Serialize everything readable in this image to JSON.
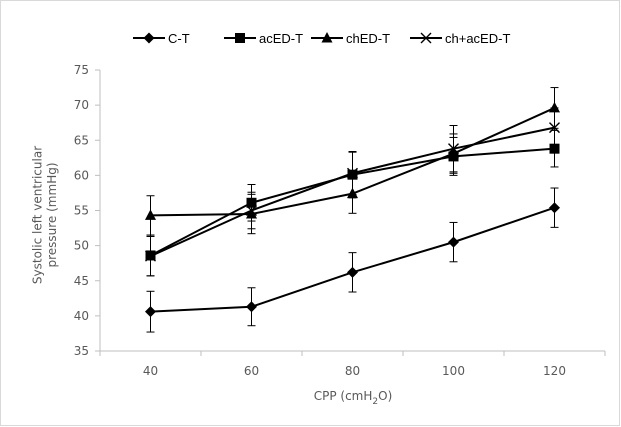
{
  "chart_data": {
    "type": "line",
    "title": "",
    "xlabel": "CPP (cmH2O)",
    "ylabel_lines": [
      "Systolic left ventricular",
      "pressure (mmHg)"
    ],
    "x": [
      40,
      60,
      80,
      100,
      120
    ],
    "x_ticks": [
      "40",
      "60",
      "80",
      "100",
      "120"
    ],
    "ylim": [
      35,
      75
    ],
    "y_ticks": [
      "35",
      "40",
      "45",
      "50",
      "55",
      "60",
      "65",
      "70",
      "75"
    ],
    "grid": false,
    "legend_position": "top",
    "line_color": "#000000",
    "series": [
      {
        "name": "C-T",
        "marker": "diamond",
        "values": [
          40.6,
          41.3,
          46.2,
          50.5,
          55.4
        ],
        "errors": [
          2.9,
          2.7,
          2.8,
          2.8,
          2.8
        ]
      },
      {
        "name": "acED-T",
        "marker": "square",
        "values": [
          48.6,
          56.1,
          60.1,
          62.7,
          63.8
        ],
        "errors": [
          2.9,
          2.6,
          3.3,
          2.7,
          2.6
        ]
      },
      {
        "name": "chED-T",
        "marker": "triangle",
        "values": [
          54.3,
          54.5,
          57.4,
          63.1,
          69.6
        ],
        "errors": [
          2.8,
          2.8,
          2.8,
          2.8,
          2.9
        ]
      },
      {
        "name": "ch+acED-T",
        "marker": "x",
        "values": [
          48.5,
          55.0,
          60.3,
          63.8,
          66.8
        ],
        "errors": [
          2.8,
          2.6,
          3.0,
          3.3,
          2.8
        ]
      }
    ]
  }
}
